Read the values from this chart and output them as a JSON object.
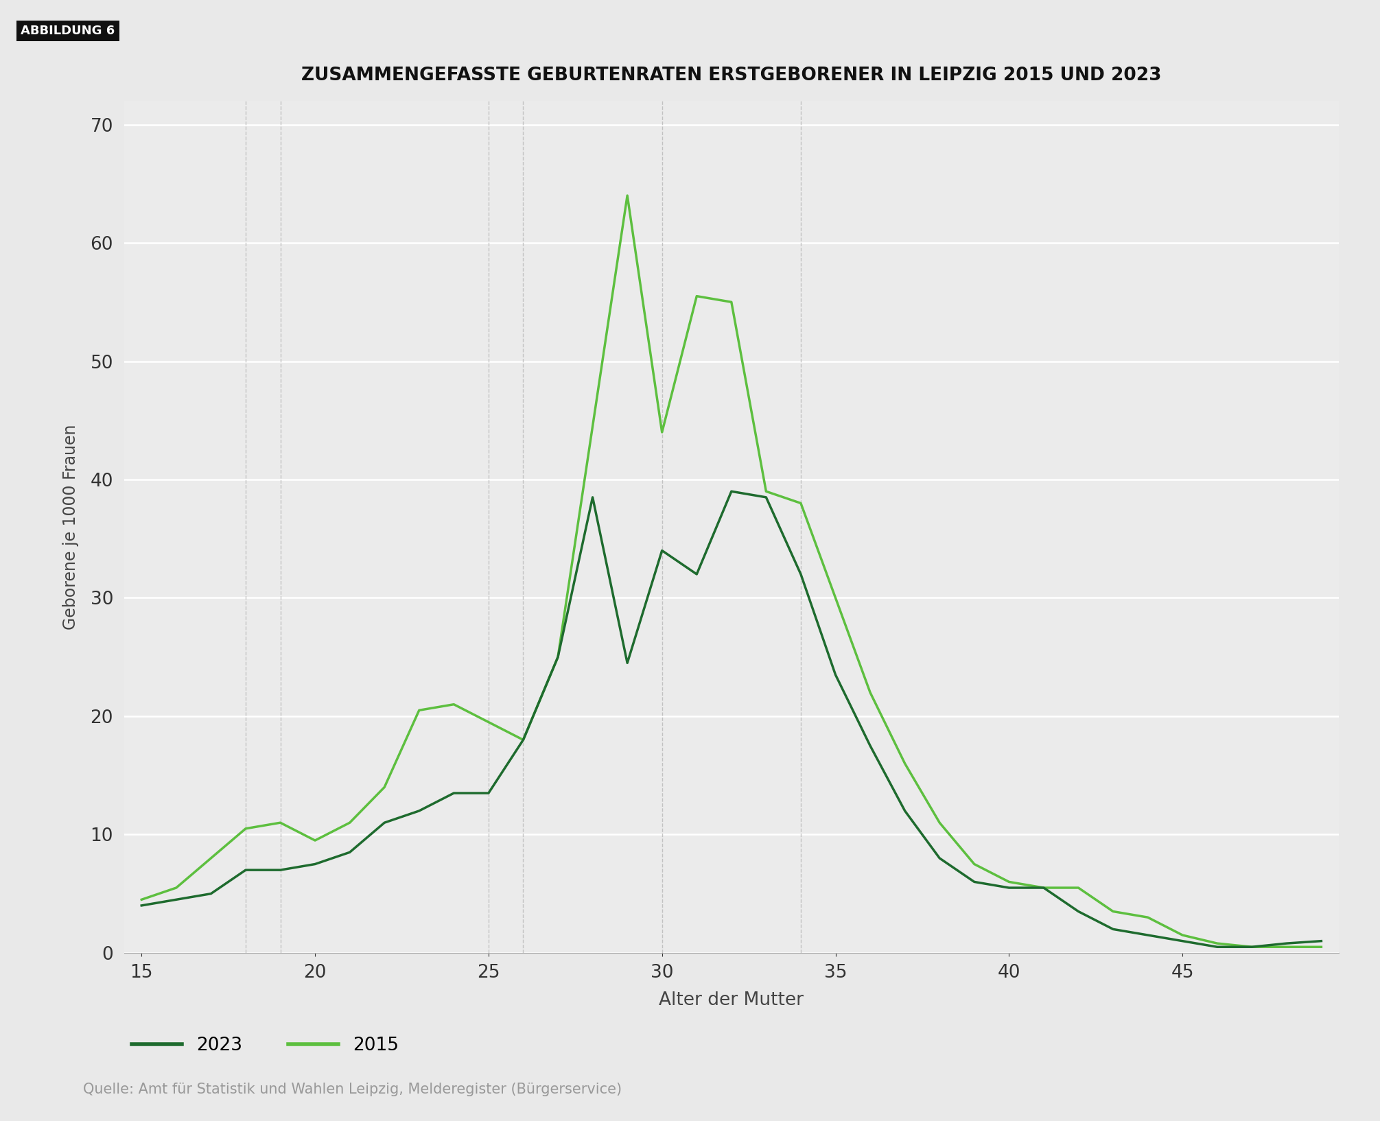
{
  "title": "ZUSAMMENGEFASSTE GEBURTENRATEN ERSTGEBORENER IN LEIPZIG 2015 UND 2023",
  "xlabel": "Alter der Mutter",
  "ylabel": "Geborene je 1000 Frauen",
  "source": "Quelle: Amt für Statistik und Wahlen Leipzig, Melderegister (Bürgerservice)",
  "figure_label": "ABBILDUNG 6",
  "background_color": "#e9e9e9",
  "plot_background": "#ebebeb",
  "ylim": [
    0,
    72
  ],
  "yticks": [
    0,
    10,
    20,
    30,
    40,
    50,
    60,
    70
  ],
  "xlim": [
    14.5,
    49.5
  ],
  "xticks": [
    15,
    20,
    25,
    30,
    35,
    40,
    45
  ],
  "color_2023": "#1e6b2e",
  "color_2015": "#5dbf3f",
  "linewidth": 2.5,
  "ages": [
    15,
    16,
    17,
    18,
    19,
    20,
    21,
    22,
    23,
    24,
    25,
    26,
    27,
    28,
    29,
    30,
    31,
    32,
    33,
    34,
    35,
    36,
    37,
    38,
    39,
    40,
    41,
    42,
    43,
    44,
    45,
    46,
    47,
    48,
    49
  ],
  "values_2023": [
    4.0,
    4.5,
    5.0,
    7.0,
    7.0,
    7.5,
    8.5,
    11.0,
    12.0,
    13.5,
    13.5,
    18.0,
    25.0,
    38.5,
    24.5,
    34.0,
    32.0,
    39.0,
    38.5,
    32.0,
    23.5,
    17.5,
    12.0,
    8.0,
    6.0,
    5.5,
    5.5,
    3.5,
    2.0,
    1.5,
    1.0,
    0.5,
    0.5,
    0.8,
    1.0
  ],
  "values_2015": [
    4.5,
    5.5,
    8.0,
    10.5,
    11.0,
    9.5,
    11.0,
    14.0,
    20.5,
    21.0,
    19.5,
    18.0,
    25.0,
    44.5,
    64.0,
    44.0,
    55.5,
    55.0,
    39.0,
    38.0,
    30.0,
    22.0,
    16.0,
    11.0,
    7.5,
    6.0,
    5.5,
    5.5,
    3.5,
    3.0,
    1.5,
    0.8,
    0.5,
    0.5,
    0.5
  ],
  "dashed_lines_x": [
    18,
    19,
    25,
    26,
    30,
    34
  ],
  "legend_2023": "2023",
  "legend_2015": "2015"
}
